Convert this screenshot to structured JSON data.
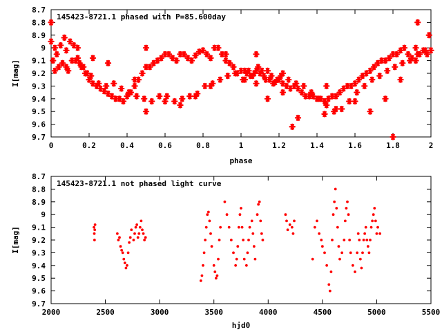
{
  "chart_data": [
    {
      "type": "scatter",
      "title": "145423-8721.1 phased with P=85.600day",
      "xlabel": "phase",
      "ylabel": "I[mag]",
      "xlim": [
        0,
        2
      ],
      "ylim": [
        9.7,
        8.7
      ],
      "y_reversed": true,
      "xticks": [
        0,
        0.2,
        0.4,
        0.6,
        0.8,
        1,
        1.2,
        1.4,
        1.6,
        1.8,
        2
      ],
      "xtick_labels": [
        "0",
        "0.2",
        "0.4",
        "0.6",
        "0.8",
        "1",
        "1.2",
        "1.4",
        "1.6",
        "1.8",
        "2"
      ],
      "yticks": [
        8.7,
        8.8,
        8.9,
        9.0,
        9.1,
        9.2,
        9.3,
        9.4,
        9.5,
        9.6,
        9.7
      ],
      "ytick_labels": [
        "8.7",
        "8.8",
        "8.9",
        "9",
        "9.1",
        "9.2",
        "9.3",
        "9.4",
        "9.5",
        "9.6",
        "9.7"
      ],
      "marker": "star",
      "color": "#ff0000",
      "grid": false,
      "series": [
        {
          "x": [
            0.0,
            0.02,
            0.03,
            0.05,
            0.07,
            0.08,
            0.1,
            0.12,
            0.13,
            0.15,
            0.17,
            0.18,
            0.2,
            0.22,
            0.24,
            0.26,
            0.28,
            0.3,
            0.32,
            0.34,
            0.36,
            0.38,
            0.4,
            0.42,
            0.44,
            0.46,
            0.48,
            0.5,
            0.52,
            0.54,
            0.56,
            0.58,
            0.6,
            0.62,
            0.64,
            0.66,
            0.68,
            0.7,
            0.72,
            0.74,
            0.76,
            0.78,
            0.8,
            0.82,
            0.84,
            0.86,
            0.88,
            0.9,
            0.92,
            0.94,
            0.96,
            0.98,
            1.0,
            1.02,
            1.03,
            1.05,
            1.07,
            1.08,
            1.1,
            1.12,
            1.13,
            1.15,
            1.17,
            1.18,
            1.2,
            1.22,
            1.24,
            1.26,
            1.28,
            1.3,
            1.32,
            1.34,
            1.36,
            1.38,
            1.4,
            1.42,
            1.44,
            1.46,
            1.48,
            1.5,
            1.52,
            1.54,
            1.56,
            1.58,
            1.6,
            1.62,
            1.64,
            1.66,
            1.68,
            1.7,
            1.72,
            1.74,
            1.76,
            1.78,
            1.8,
            1.82,
            1.84,
            1.86,
            1.88,
            1.9,
            1.92,
            1.94,
            1.96,
            1.98,
            2.0,
            0.01,
            0.04,
            0.06,
            0.09,
            0.11,
            0.14,
            0.16,
            0.19,
            0.21,
            0.25,
            0.29,
            0.33,
            0.37,
            0.41,
            0.45,
            0.49,
            0.53,
            0.57,
            0.61,
            0.65,
            0.69,
            0.73,
            0.77,
            0.81,
            0.85,
            0.89,
            0.93,
            0.97,
            1.01,
            1.04,
            1.06,
            1.09,
            1.11,
            1.14,
            1.16,
            1.19,
            1.21,
            1.25,
            1.29,
            1.33,
            1.37,
            1.41,
            1.45,
            1.49,
            1.53,
            1.57,
            1.61,
            1.65,
            1.69,
            1.73,
            1.77,
            1.81,
            1.85,
            1.89,
            1.93,
            1.97,
            0.02,
            0.08,
            0.14,
            0.22,
            0.3,
            0.44,
            0.5,
            0.6,
            0.68,
            0.76,
            0.84,
            0.92,
            1.02,
            1.08,
            1.14,
            1.22,
            1.3,
            1.44,
            1.5,
            1.6,
            1.68,
            1.76,
            1.84,
            1.92,
            1.99,
            1.22,
            1.27,
            1.8,
            0.0,
            0.5,
            1.08,
            1.45,
            1.93
          ],
          "y": [
            8.95,
            9.0,
            9.05,
            8.98,
            8.92,
            9.02,
            8.95,
            8.98,
            9.1,
            9.12,
            9.15,
            9.2,
            9.25,
            9.28,
            9.3,
            9.32,
            9.34,
            9.36,
            9.38,
            9.4,
            9.4,
            9.42,
            9.38,
            9.35,
            9.3,
            9.25,
            9.2,
            9.15,
            9.15,
            9.12,
            9.1,
            9.08,
            9.05,
            9.05,
            9.08,
            9.1,
            9.05,
            9.05,
            9.08,
            9.1,
            9.06,
            9.03,
            9.02,
            9.05,
            9.08,
            9.0,
            9.0,
            9.05,
            9.1,
            9.12,
            9.15,
            9.2,
            9.18,
            9.18,
            9.2,
            9.22,
            9.2,
            9.18,
            9.2,
            9.22,
            9.25,
            9.25,
            9.28,
            9.27,
            9.25,
            9.28,
            9.3,
            9.32,
            9.3,
            9.32,
            9.35,
            9.38,
            9.38,
            9.38,
            9.4,
            9.4,
            9.42,
            9.4,
            9.38,
            9.38,
            9.35,
            9.32,
            9.3,
            9.3,
            9.28,
            9.25,
            9.22,
            9.2,
            9.18,
            9.15,
            9.12,
            9.1,
            9.1,
            9.08,
            9.05,
            9.05,
            9.02,
            9.0,
            9.05,
            9.08,
            9.0,
            9.05,
            9.02,
            9.05,
            9.02,
            9.1,
            9.15,
            9.12,
            9.18,
            9.1,
            9.08,
            9.15,
            9.2,
            9.22,
            9.28,
            9.3,
            9.28,
            9.32,
            9.35,
            9.38,
            9.4,
            9.42,
            9.38,
            9.38,
            9.42,
            9.4,
            9.38,
            9.36,
            9.3,
            9.28,
            9.25,
            9.22,
            9.2,
            9.25,
            9.18,
            9.22,
            9.15,
            9.18,
            9.18,
            9.22,
            9.25,
            9.22,
            9.25,
            9.28,
            9.3,
            9.35,
            9.4,
            9.45,
            9.5,
            9.48,
            9.42,
            9.35,
            9.3,
            9.25,
            9.22,
            9.18,
            9.15,
            9.12,
            9.1,
            9.05,
            9.02,
            9.18,
            9.15,
            9.0,
            9.08,
            9.12,
            9.25,
            9.5,
            9.42,
            9.45,
            9.38,
            9.3,
            9.05,
            9.25,
            9.28,
            9.4,
            9.35,
            9.55,
            9.52,
            9.48,
            9.42,
            9.5,
            9.4,
            9.25,
            9.1,
            8.9,
            9.2,
            9.62,
            9.7,
            8.8,
            9.0,
            9.05,
            9.3,
            8.8
          ]
        }
      ]
    },
    {
      "type": "scatter",
      "title": "145423-8721.1 not phased light curve",
      "xlabel": "hjd0",
      "ylabel": "I[mag]",
      "xlim": [
        2000,
        5500
      ],
      "ylim": [
        9.7,
        8.7
      ],
      "y_reversed": true,
      "xticks": [
        2000,
        2500,
        3000,
        3500,
        4000,
        4500,
        5000,
        5500
      ],
      "xtick_labels": [
        "2000",
        "2500",
        "3000",
        "3500",
        "4000",
        "4500",
        "5000",
        "5500"
      ],
      "yticks": [
        8.7,
        8.8,
        8.9,
        9.0,
        9.1,
        9.2,
        9.3,
        9.4,
        9.5,
        9.6,
        9.7
      ],
      "ytick_labels": [
        "8.7",
        "8.8",
        "8.9",
        "9",
        "9.1",
        "9.2",
        "9.3",
        "9.4",
        "9.5",
        "9.6",
        "9.7"
      ],
      "marker": "dot",
      "color": "#ff0000",
      "grid": false,
      "series": [
        {
          "x": [
            2395,
            2398,
            2400,
            2402,
            2405,
            2610,
            2620,
            2630,
            2640,
            2650,
            2660,
            2670,
            2680,
            2690,
            2700,
            2710,
            2720,
            2730,
            2740,
            2760,
            2770,
            2780,
            2790,
            2800,
            2810,
            2820,
            2830,
            2840,
            2850,
            2860,
            2870,
            3380,
            3390,
            3400,
            3410,
            3420,
            3430,
            3440,
            3450,
            3460,
            3470,
            3480,
            3500,
            3510,
            3520,
            3530,
            3540,
            3550,
            3560,
            3600,
            3620,
            3640,
            3660,
            3680,
            3700,
            3710,
            3720,
            3730,
            3740,
            3750,
            3760,
            3770,
            3780,
            3800,
            3810,
            3820,
            3830,
            3850,
            3860,
            3870,
            3880,
            3900,
            3910,
            3920,
            3930,
            3940,
            3950,
            4160,
            4170,
            4180,
            4200,
            4220,
            4230,
            4240,
            4410,
            4430,
            4450,
            4470,
            4490,
            4500,
            4520,
            4540,
            4560,
            4570,
            4580,
            4590,
            4600,
            4610,
            4620,
            4630,
            4640,
            4650,
            4660,
            4680,
            4700,
            4710,
            4720,
            4730,
            4740,
            4750,
            4760,
            4780,
            4800,
            4820,
            4830,
            4840,
            4850,
            4860,
            4870,
            4880,
            4890,
            4900,
            4910,
            4920,
            4930,
            4940,
            4950,
            4960,
            4970,
            4980,
            4990,
            5000,
            5010,
            5030
          ],
          "y": [
            9.1,
            9.15,
            9.2,
            9.12,
            9.08,
            9.15,
            9.2,
            9.18,
            9.25,
            9.28,
            9.3,
            9.35,
            9.38,
            9.42,
            9.4,
            9.3,
            9.22,
            9.18,
            9.12,
            9.2,
            9.15,
            9.1,
            9.08,
            9.18,
            9.15,
            9.1,
            9.05,
            9.12,
            9.15,
            9.2,
            9.18,
            9.52,
            9.48,
            9.4,
            9.3,
            9.2,
            9.1,
            9.0,
            8.98,
            9.05,
            9.15,
            9.25,
            9.4,
            9.45,
            9.5,
            9.48,
            9.35,
            9.2,
            9.1,
            8.9,
            9.0,
            9.1,
            9.2,
            9.3,
            9.4,
            9.35,
            9.25,
            9.1,
            9.0,
            8.95,
            9.1,
            9.2,
            9.35,
            9.4,
            9.3,
            9.2,
            9.1,
            9.05,
            9.15,
            9.25,
            9.35,
            9.0,
            8.92,
            8.9,
            9.05,
            9.15,
            9.2,
            9.0,
            9.05,
            9.12,
            9.08,
            9.1,
            9.15,
            9.05,
            9.35,
            9.1,
            9.05,
            9.15,
            9.2,
            9.25,
            9.3,
            9.4,
            9.55,
            9.6,
            9.45,
            9.2,
            9.0,
            8.9,
            8.8,
            8.95,
            9.1,
            9.25,
            9.35,
            9.3,
            9.2,
            9.05,
            8.95,
            8.9,
            9.0,
            9.2,
            9.3,
            9.4,
            9.45,
            9.3,
            9.15,
            9.2,
            9.35,
            9.42,
            9.3,
            9.2,
            9.15,
            9.1,
            9.2,
            9.25,
            9.3,
            9.2,
            9.1,
            9.05,
            9.0,
            8.95,
            9.05,
            9.15,
            9.1,
            9.15
          ]
        }
      ]
    }
  ]
}
